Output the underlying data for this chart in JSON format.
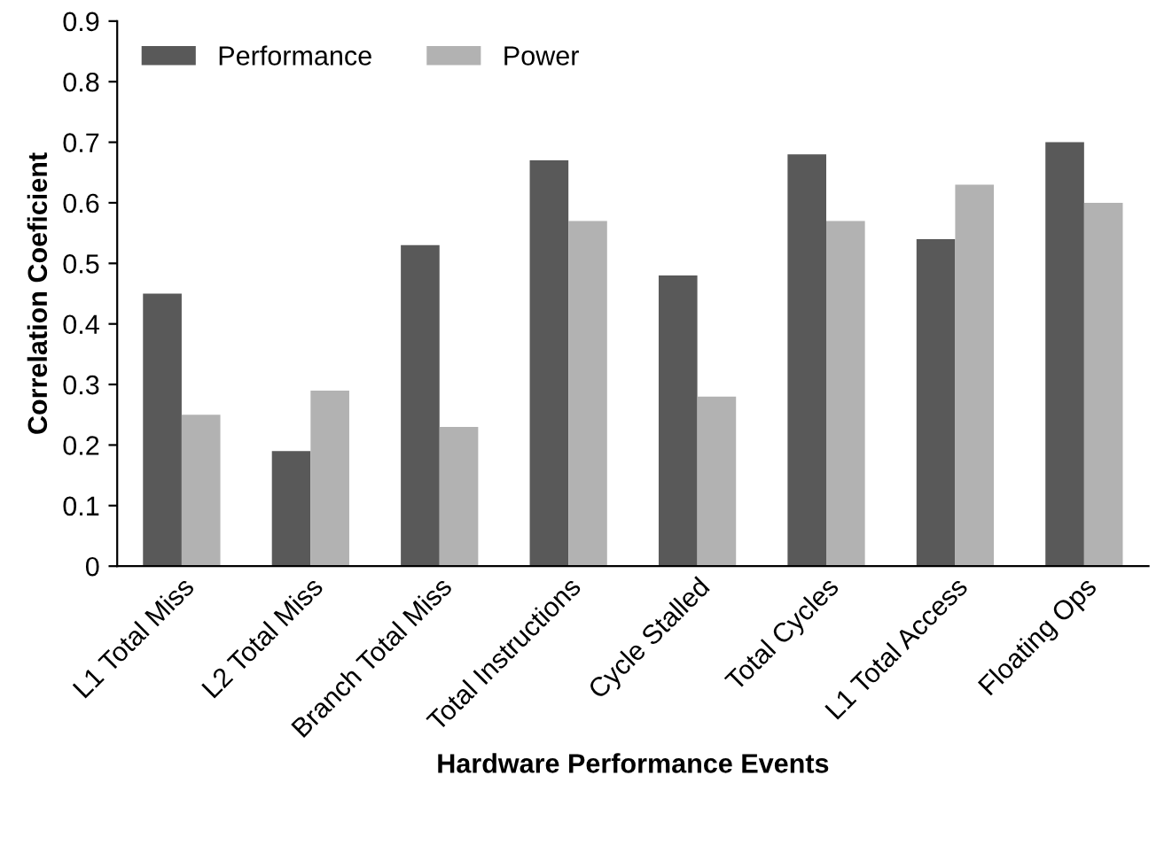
{
  "chart_data": {
    "type": "bar",
    "xlabel": "Hardware Performance Events",
    "ylabel": "Correlation Coeficient",
    "categories": [
      "L1 Total Miss",
      "L2 Total Miss",
      "Branch Total Miss",
      "Total Instructions",
      "Cycle Stalled",
      "Total Cycles",
      "L1 Total Access",
      "Floating Ops"
    ],
    "series": [
      {
        "name": "Performance",
        "color": "#595959",
        "values": [
          0.45,
          0.19,
          0.53,
          0.67,
          0.48,
          0.68,
          0.54,
          0.7
        ]
      },
      {
        "name": "Power",
        "color": "#b2b2b2",
        "values": [
          0.25,
          0.29,
          0.23,
          0.57,
          0.28,
          0.57,
          0.63,
          0.6
        ]
      }
    ],
    "ylim": [
      0,
      0.9
    ],
    "yticks": [
      0,
      0.1,
      0.2,
      0.3,
      0.4,
      0.5,
      0.6,
      0.7,
      0.8,
      0.9
    ],
    "grid": false,
    "legend": "top left"
  }
}
